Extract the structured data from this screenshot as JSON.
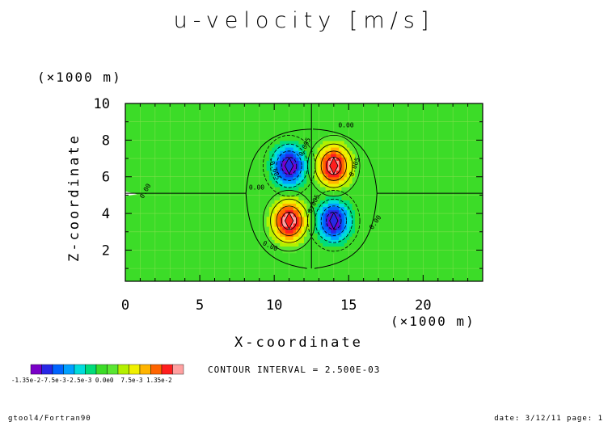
{
  "chart_data": {
    "type": "heatmap",
    "title": "u-velocity [m/s]",
    "xlabel": "X-coordinate",
    "ylabel": "Z-coordinate",
    "x_unit": "(×1000 m)",
    "y_unit": "(×1000 m)",
    "xlim": [
      0,
      24
    ],
    "ylim": [
      0.3,
      10
    ],
    "x_ticks": [
      "0",
      "5",
      "10",
      "15",
      "20"
    ],
    "y_ticks": [
      "2",
      "4",
      "6",
      "8",
      "10"
    ],
    "contour_interval_text": "CONTOUR INTERVAL = 2.500E-03",
    "background_value": 0,
    "extrema": [
      {
        "x": 11.0,
        "z": 6.6,
        "sign": "negative",
        "value": -0.0135
      },
      {
        "x": 14.0,
        "z": 6.6,
        "sign": "positive",
        "value": 0.0135
      },
      {
        "x": 11.0,
        "z": 3.6,
        "sign": "positive",
        "value": 0.0135
      },
      {
        "x": 14.0,
        "z": 3.6,
        "sign": "negative",
        "value": -0.0135
      }
    ],
    "contour_labels": [
      "0.00",
      "0.00",
      "0.00",
      "0.00",
      "0.00",
      "0.005",
      "0.005",
      "0.005",
      "-0.005"
    ],
    "colorbar": {
      "min": -0.0135,
      "max": 0.0135,
      "labels_text": "-1.35e-2-7.5e-3-2.5e-3 0.0e0  7.5e-3 1.35e-2",
      "colors": [
        "#7a00c8",
        "#2828e6",
        "#0064ff",
        "#00a0ff",
        "#00dcdc",
        "#00dc7a",
        "#3cdc28",
        "#5ae632",
        "#b4f000",
        "#f0f000",
        "#ffb400",
        "#ff6400",
        "#ff1e1e",
        "#ffa0a0"
      ]
    }
  },
  "footer": {
    "left": "gtool4/Fortran90",
    "right": "date: 3/12/11 page: 1"
  }
}
